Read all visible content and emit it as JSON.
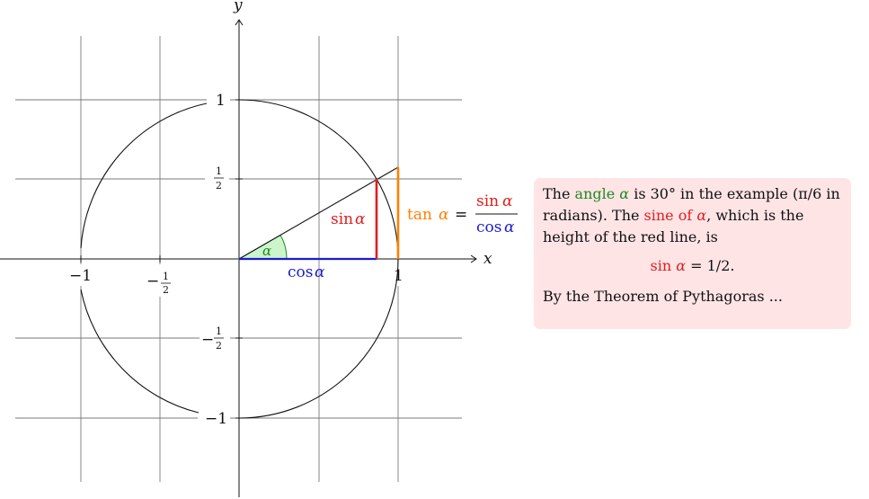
{
  "axes": {
    "x_label": "x",
    "y_label": "y",
    "x_ticks": [
      "−1",
      "−",
      "1"
    ],
    "y_ticks": [
      "1",
      "−1"
    ],
    "half": {
      "num": "1",
      "den": "2",
      "neg": "−"
    }
  },
  "labels": {
    "alpha": "α",
    "sin": "sin",
    "cos": "cos",
    "tan": "tan",
    "equals": "="
  },
  "colors": {
    "grid": "#7a7a7a",
    "sin_line": "#e11d1d",
    "cos_line": "#1b1bd6",
    "tan_line": "#ff8000",
    "angle_fill": "#ccf5cc",
    "angle_stroke": "#1f8a1f",
    "note_background": "#ffe4e6"
  },
  "note": {
    "part1": "The ",
    "angle_word": "angle ",
    "angle_sym": "α",
    "part2": " is 30° in the example (π/6 in radians). The ",
    "sine_word": "sine of ",
    "sine_sym": "α",
    "part3": ", which is the height of the red line, is",
    "formula_sin": "sin ",
    "formula_alpha": "α",
    "formula_rest": " = 1/2.",
    "closing": "By the Theorem of Pythagoras ..."
  }
}
